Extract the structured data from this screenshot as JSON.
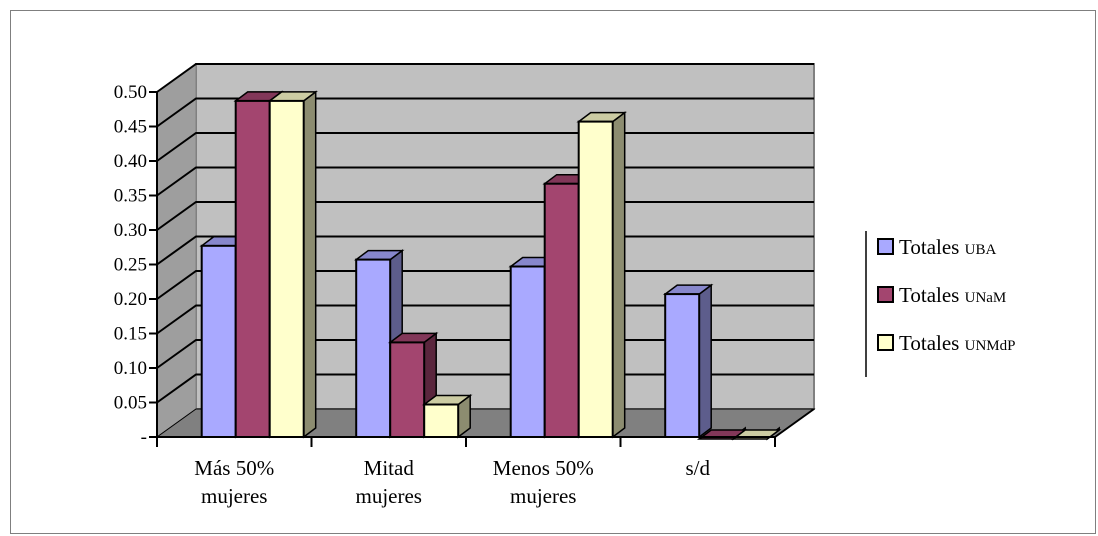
{
  "chart_data": {
    "type": "bar",
    "categories": [
      [
        "Más 50%",
        "mujeres"
      ],
      [
        "Mitad",
        "mujeres"
      ],
      [
        "Menos 50%",
        "mujeres"
      ],
      [
        "s/d"
      ]
    ],
    "series": [
      {
        "name_main": "Totales ",
        "name_sc": "UBA",
        "color": "#a9a9ff",
        "values": [
          0.28,
          0.26,
          0.25,
          0.21
        ]
      },
      {
        "name_main": "Totales ",
        "name_sc": "UNaM",
        "color": "#a3456f",
        "values": [
          0.49,
          0.14,
          0.37,
          0.0
        ]
      },
      {
        "name_main": "Totales ",
        "name_sc": "UNMdP",
        "color": "#ffffcc",
        "values": [
          0.49,
          0.05,
          0.46,
          0.0
        ]
      }
    ],
    "y_ticks": [
      "-",
      "0.05",
      "0.10",
      "0.15",
      "0.20",
      "0.25",
      "0.30",
      "0.35",
      "0.40",
      "0.45",
      "0.50"
    ],
    "ylim": [
      0,
      0.5
    ],
    "grid": true,
    "legend_position": "right",
    "colors": {
      "wall": "#c0c0c0",
      "floor": "#808080",
      "gridline": "#000000"
    }
  }
}
